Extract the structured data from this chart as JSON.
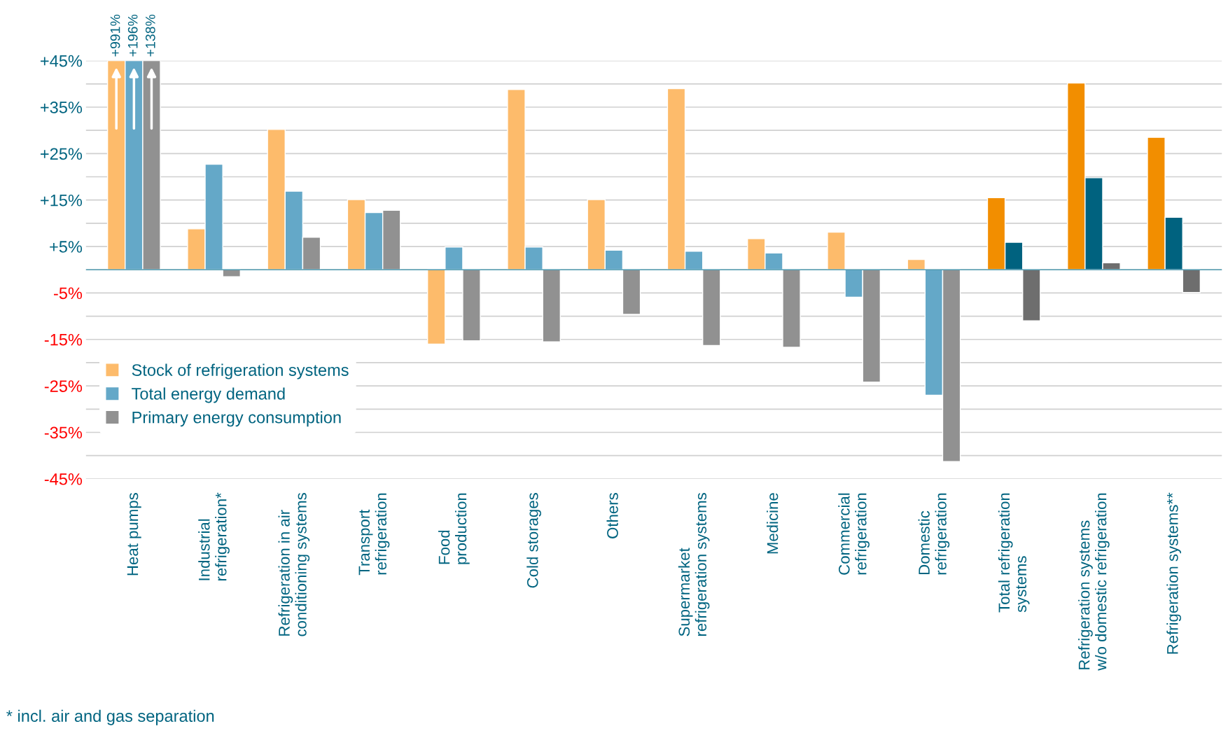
{
  "chart_data": {
    "type": "bar",
    "categories": [
      "Heat pumps",
      "Industrial\nrefrigeration*",
      "Refrigeration in air\nconditioning systems",
      "Transport\nrefrigeration",
      "Food\nproduction",
      "Cold storages",
      "Others",
      "Supermarket\nrefrigeration systems",
      "Medicine",
      "Commercial\nrefrigeration",
      "Domestic\nrefrigeration",
      "Total refrigeration\nsystems",
      "Refrigeration systems\nw/o domestic refrigeration",
      "Refrigeration systems**"
    ],
    "series": [
      {
        "name": "Stock of refrigeration systems",
        "color": "#fdbb6b",
        "colors": [
          "#fdbb6b",
          "#fdbb6b",
          "#fdbb6b",
          "#fdbb6b",
          "#fdbb6b",
          "#fdbb6b",
          "#fdbb6b",
          "#fdbb6b",
          "#fdbb6b",
          "#fdbb6b",
          "#fdbb6b",
          "#f28e00",
          "#f28e00",
          "#f28e00"
        ],
        "values": [
          45,
          8.8,
          30.2,
          15.1,
          -16.0,
          38.8,
          15.1,
          39.0,
          6.7,
          8.1,
          2.2,
          15.5,
          40.2,
          28.5
        ]
      },
      {
        "name": "Total energy demand",
        "color": "#64a8c8",
        "colors": [
          "#64a8c8",
          "#64a8c8",
          "#64a8c8",
          "#64a8c8",
          "#64a8c8",
          "#64a8c8",
          "#64a8c8",
          "#64a8c8",
          "#64a8c8",
          "#64a8c8",
          "#64a8c8",
          "#00627f",
          "#00627f",
          "#00627f"
        ],
        "values": [
          45,
          22.7,
          16.9,
          12.3,
          4.9,
          4.9,
          4.2,
          4.0,
          3.6,
          -5.9,
          -27.0,
          5.9,
          19.8,
          11.3
        ]
      },
      {
        "name": "Primary energy consumption",
        "color": "#919191",
        "colors": [
          "#919191",
          "#919191",
          "#919191",
          "#919191",
          "#919191",
          "#919191",
          "#919191",
          "#919191",
          "#919191",
          "#919191",
          "#919191",
          "#6e6e6e",
          "#6e6e6e",
          "#6e6e6e"
        ],
        "values": [
          45,
          -1.5,
          7.0,
          12.8,
          -15.3,
          -15.5,
          -9.6,
          -16.3,
          -16.7,
          -24.2,
          -41.3,
          -11.0,
          1.5,
          -4.9
        ]
      }
    ],
    "ylim": [
      -45,
      45
    ],
    "yticks": [
      {
        "value": -45,
        "label": "-45%"
      },
      {
        "value": -40,
        "label": null
      },
      {
        "value": -35,
        "label": "-35%"
      },
      {
        "value": -30,
        "label": null
      },
      {
        "value": -25,
        "label": "-25%"
      },
      {
        "value": -20,
        "label": null
      },
      {
        "value": -15,
        "label": "-15%"
      },
      {
        "value": -10,
        "label": null
      },
      {
        "value": -5,
        "label": "-5%"
      },
      {
        "value": 0,
        "label": null
      },
      {
        "value": 5,
        "label": "+5%"
      },
      {
        "value": 10,
        "label": null
      },
      {
        "value": 15,
        "label": "+15%"
      },
      {
        "value": 20,
        "label": null
      },
      {
        "value": 25,
        "label": "+25%"
      },
      {
        "value": 30,
        "label": null
      },
      {
        "value": 35,
        "label": "+35%"
      },
      {
        "value": 40,
        "label": null
      },
      {
        "value": 45,
        "label": "+45%"
      }
    ],
    "grid": "y",
    "legend": "left",
    "ref_lines": [
      {
        "axis": "y",
        "value": 0,
        "color": "#4f9ab0"
      }
    ],
    "annotations": [
      {
        "text": "+991%",
        "x": "Heat pumps",
        "y": 45
      },
      {
        "text": "+196%",
        "x": "Heat pumps",
        "y": 45
      },
      {
        "text": "+138%",
        "x": "Heat pumps",
        "y": 45
      },
      "* incl. air and gas separation"
    ]
  }
}
